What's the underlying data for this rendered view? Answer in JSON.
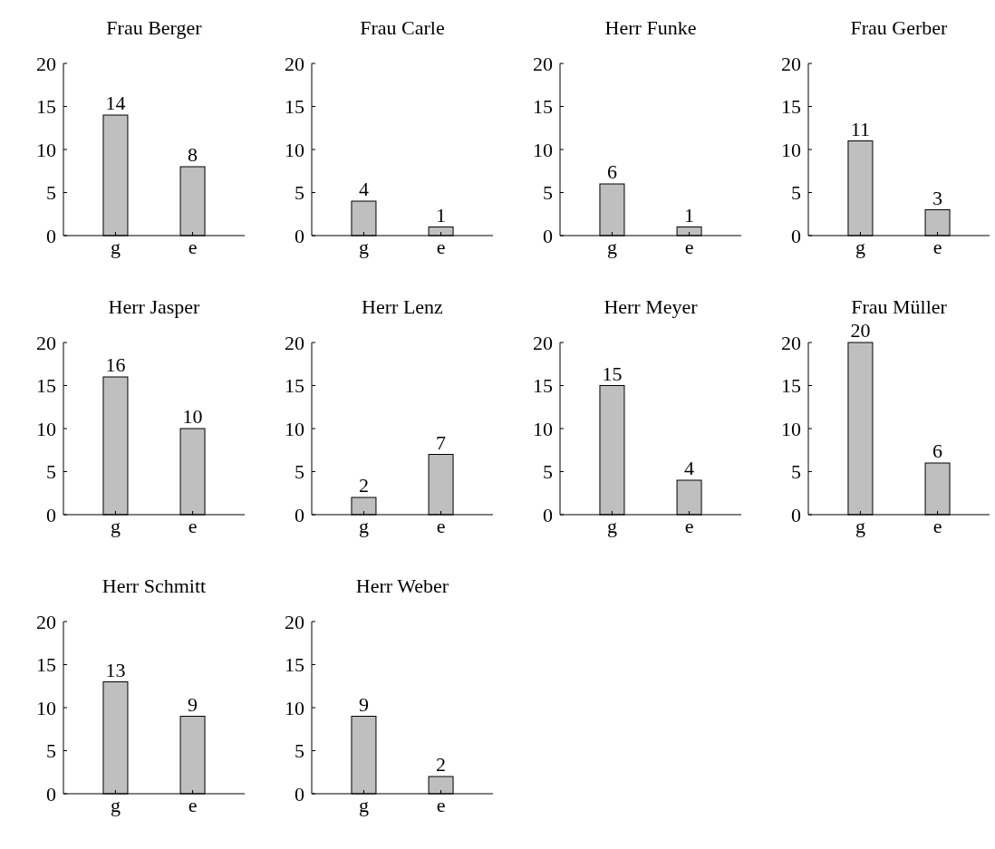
{
  "chart_data": [
    {
      "type": "bar",
      "title": "Frau Berger",
      "categories": [
        "g",
        "e"
      ],
      "values": [
        14,
        8
      ],
      "color": "#bfbfbf",
      "ylim": [
        0,
        20
      ],
      "yticks": [
        0,
        5,
        10,
        15,
        20
      ],
      "data_labels": true
    },
    {
      "type": "bar",
      "title": "Frau Carle",
      "categories": [
        "g",
        "e"
      ],
      "values": [
        4,
        1
      ],
      "color": "#bfbfbf",
      "ylim": [
        0,
        20
      ],
      "yticks": [
        0,
        5,
        10,
        15,
        20
      ],
      "data_labels": true
    },
    {
      "type": "bar",
      "title": "Herr Funke",
      "categories": [
        "g",
        "e"
      ],
      "values": [
        6,
        1
      ],
      "color": "#bfbfbf",
      "ylim": [
        0,
        20
      ],
      "yticks": [
        0,
        5,
        10,
        15,
        20
      ],
      "data_labels": true
    },
    {
      "type": "bar",
      "title": "Frau Gerber",
      "categories": [
        "g",
        "e"
      ],
      "values": [
        11,
        3
      ],
      "color": "#bfbfbf",
      "ylim": [
        0,
        20
      ],
      "yticks": [
        0,
        5,
        10,
        15,
        20
      ],
      "data_labels": true
    },
    {
      "type": "bar",
      "title": "Herr Jasper",
      "categories": [
        "g",
        "e"
      ],
      "values": [
        16,
        10
      ],
      "color": "#bfbfbf",
      "ylim": [
        0,
        20
      ],
      "yticks": [
        0,
        5,
        10,
        15,
        20
      ],
      "data_labels": true
    },
    {
      "type": "bar",
      "title": "Herr Lenz",
      "categories": [
        "g",
        "e"
      ],
      "values": [
        2,
        7
      ],
      "color": "#bfbfbf",
      "ylim": [
        0,
        20
      ],
      "yticks": [
        0,
        5,
        10,
        15,
        20
      ],
      "data_labels": true
    },
    {
      "type": "bar",
      "title": "Herr Meyer",
      "categories": [
        "g",
        "e"
      ],
      "values": [
        15,
        4
      ],
      "color": "#bfbfbf",
      "ylim": [
        0,
        20
      ],
      "yticks": [
        0,
        5,
        10,
        15,
        20
      ],
      "data_labels": true
    },
    {
      "type": "bar",
      "title": "Frau Müller",
      "categories": [
        "g",
        "e"
      ],
      "values": [
        20,
        6
      ],
      "color": "#bfbfbf",
      "ylim": [
        0,
        20
      ],
      "yticks": [
        0,
        5,
        10,
        15,
        20
      ],
      "data_labels": true
    },
    {
      "type": "bar",
      "title": "Herr Schmitt",
      "categories": [
        "g",
        "e"
      ],
      "values": [
        13,
        9
      ],
      "color": "#bfbfbf",
      "ylim": [
        0,
        20
      ],
      "yticks": [
        0,
        5,
        10,
        15,
        20
      ],
      "data_labels": true
    },
    {
      "type": "bar",
      "title": "Herr Weber",
      "categories": [
        "g",
        "e"
      ],
      "values": [
        9,
        2
      ],
      "color": "#bfbfbf",
      "ylim": [
        0,
        20
      ],
      "yticks": [
        0,
        5,
        10,
        15,
        20
      ],
      "data_labels": true
    }
  ]
}
